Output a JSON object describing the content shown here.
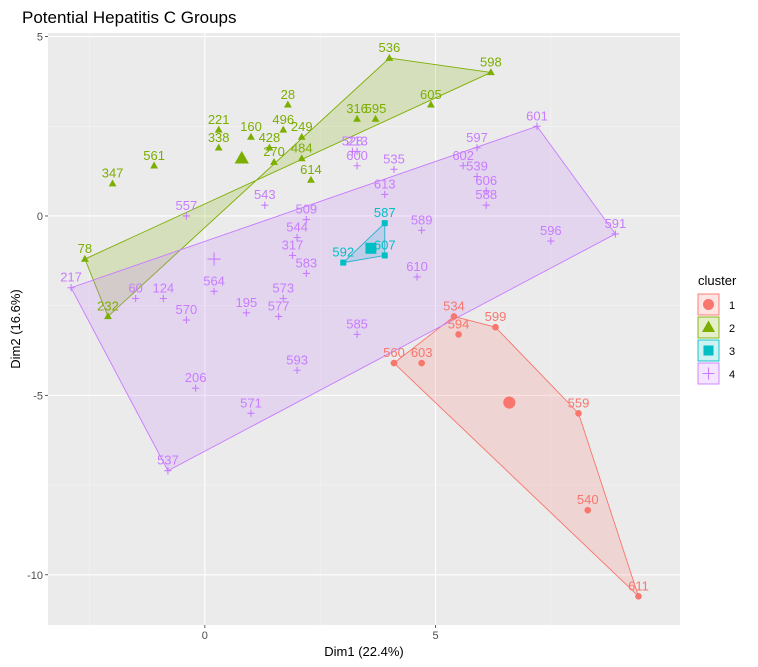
{
  "chart_data": {
    "type": "scatter",
    "title": "Potential Hepatitis C Groups",
    "xlabel": "Dim1 (22.4%)",
    "ylabel": "Dim2 (16.6%)",
    "xlim": [
      -3.4,
      10.3
    ],
    "ylim": [
      -11.4,
      5.1
    ],
    "x_ticks": [
      0,
      5
    ],
    "y_ticks": [
      5,
      0,
      -5,
      -10
    ],
    "grid": true,
    "legend": {
      "title": "cluster",
      "position": "right",
      "entries": [
        "1",
        "2",
        "3",
        "4"
      ]
    },
    "colors": {
      "1": "#F8766D",
      "2": "#7CAE00",
      "3": "#00BFC4",
      "4": "#C77CFF"
    },
    "clusters": [
      {
        "cluster": "1",
        "shape": "circle",
        "hull_ids": [
          "534",
          "599",
          "559",
          "611",
          "560"
        ],
        "center": [
          6.6,
          -5.2
        ],
        "points": [
          {
            "id": "534",
            "x": 5.4,
            "y": -2.8
          },
          {
            "id": "599",
            "x": 6.3,
            "y": -3.1
          },
          {
            "id": "594",
            "x": 5.5,
            "y": -3.3
          },
          {
            "id": "560",
            "x": 4.1,
            "y": -4.1
          },
          {
            "id": "603",
            "x": 4.7,
            "y": -4.1
          },
          {
            "id": "559",
            "x": 8.1,
            "y": -5.5
          },
          {
            "id": "540",
            "x": 8.3,
            "y": -8.2
          },
          {
            "id": "611",
            "x": 9.4,
            "y": -10.6
          }
        ]
      },
      {
        "cluster": "2",
        "shape": "triangle",
        "hull_ids": [
          "536",
          "598",
          "78",
          "232"
        ],
        "center": [
          0.8,
          1.6
        ],
        "points": [
          {
            "id": "536",
            "x": 4.0,
            "y": 4.4
          },
          {
            "id": "598",
            "x": 6.2,
            "y": 4.0
          },
          {
            "id": "28",
            "x": 1.8,
            "y": 3.1
          },
          {
            "id": "605",
            "x": 4.9,
            "y": 3.1
          },
          {
            "id": "316",
            "x": 3.3,
            "y": 2.7
          },
          {
            "id": "595",
            "x": 3.7,
            "y": 2.7
          },
          {
            "id": "496",
            "x": 1.7,
            "y": 2.4
          },
          {
            "id": "249",
            "x": 2.1,
            "y": 2.2
          },
          {
            "id": "221",
            "x": 0.3,
            "y": 2.4
          },
          {
            "id": "160",
            "x": 1.0,
            "y": 2.2
          },
          {
            "id": "428",
            "x": 1.4,
            "y": 1.9
          },
          {
            "id": "484",
            "x": 2.1,
            "y": 1.6
          },
          {
            "id": "270",
            "x": 1.5,
            "y": 1.5
          },
          {
            "id": "614",
            "x": 2.3,
            "y": 1.0
          },
          {
            "id": "561",
            "x": -1.1,
            "y": 1.4
          },
          {
            "id": "347",
            "x": -2.0,
            "y": 0.9
          },
          {
            "id": "78",
            "x": -2.6,
            "y": -1.2
          },
          {
            "id": "232",
            "x": -2.1,
            "y": -2.8
          },
          {
            "id": "338",
            "x": 0.3,
            "y": 1.9
          }
        ]
      },
      {
        "cluster": "3",
        "shape": "square",
        "hull_ids": [
          "587",
          "607",
          "592"
        ],
        "center": [
          3.6,
          -0.9
        ],
        "points": [
          {
            "id": "587",
            "x": 3.9,
            "y": -0.2
          },
          {
            "id": "607",
            "x": 3.9,
            "y": -1.1
          },
          {
            "id": "592",
            "x": 3.0,
            "y": -1.3
          }
        ]
      },
      {
        "cluster": "4",
        "shape": "cross",
        "hull_ids": [
          "601",
          "591",
          "537",
          "217"
        ],
        "center": [
          0.2,
          -1.2
        ],
        "points": [
          {
            "id": "601",
            "x": 7.2,
            "y": 2.5
          },
          {
            "id": "597",
            "x": 5.9,
            "y": 1.9
          },
          {
            "id": "602",
            "x": 5.6,
            "y": 1.4
          },
          {
            "id": "539",
            "x": 5.9,
            "y": 1.1
          },
          {
            "id": "606",
            "x": 6.1,
            "y": 0.7
          },
          {
            "id": "588",
            "x": 6.1,
            "y": 0.3
          },
          {
            "id": "596",
            "x": 7.5,
            "y": -0.7
          },
          {
            "id": "591",
            "x": 8.9,
            "y": -0.5
          },
          {
            "id": "528",
            "x": 3.2,
            "y": 1.8
          },
          {
            "id": "213",
            "x": 3.3,
            "y": 1.8
          },
          {
            "id": "600",
            "x": 3.3,
            "y": 1.4
          },
          {
            "id": "535",
            "x": 4.1,
            "y": 1.3
          },
          {
            "id": "613",
            "x": 3.9,
            "y": 0.6
          },
          {
            "id": "589",
            "x": 4.7,
            "y": -0.4
          },
          {
            "id": "610",
            "x": 4.6,
            "y": -1.7
          },
          {
            "id": "585",
            "x": 3.3,
            "y": -3.3
          },
          {
            "id": "509",
            "x": 2.2,
            "y": -0.1
          },
          {
            "id": "544",
            "x": 2.0,
            "y": -0.6
          },
          {
            "id": "317",
            "x": 1.9,
            "y": -1.1
          },
          {
            "id": "583",
            "x": 2.2,
            "y": -1.6
          },
          {
            "id": "573",
            "x": 1.7,
            "y": -2.3
          },
          {
            "id": "577",
            "x": 1.6,
            "y": -2.8
          },
          {
            "id": "195",
            "x": 0.9,
            "y": -2.7
          },
          {
            "id": "570",
            "x": -0.4,
            "y": -2.9
          },
          {
            "id": "124",
            "x": -0.9,
            "y": -2.3
          },
          {
            "id": "593",
            "x": 2.0,
            "y": -4.3
          },
          {
            "id": "206",
            "x": -0.2,
            "y": -4.8
          },
          {
            "id": "571",
            "x": 1.0,
            "y": -5.5
          },
          {
            "id": "537",
            "x": -0.8,
            "y": -7.1
          },
          {
            "id": "217",
            "x": -2.9,
            "y": -2.0
          },
          {
            "id": "543",
            "x": 1.3,
            "y": 0.3
          },
          {
            "id": "557",
            "x": -0.4,
            "y": 0.0
          },
          {
            "id": "564",
            "x": 0.2,
            "y": -2.1
          },
          {
            "id": "60",
            "x": -1.5,
            "y": -2.3
          }
        ]
      }
    ]
  }
}
